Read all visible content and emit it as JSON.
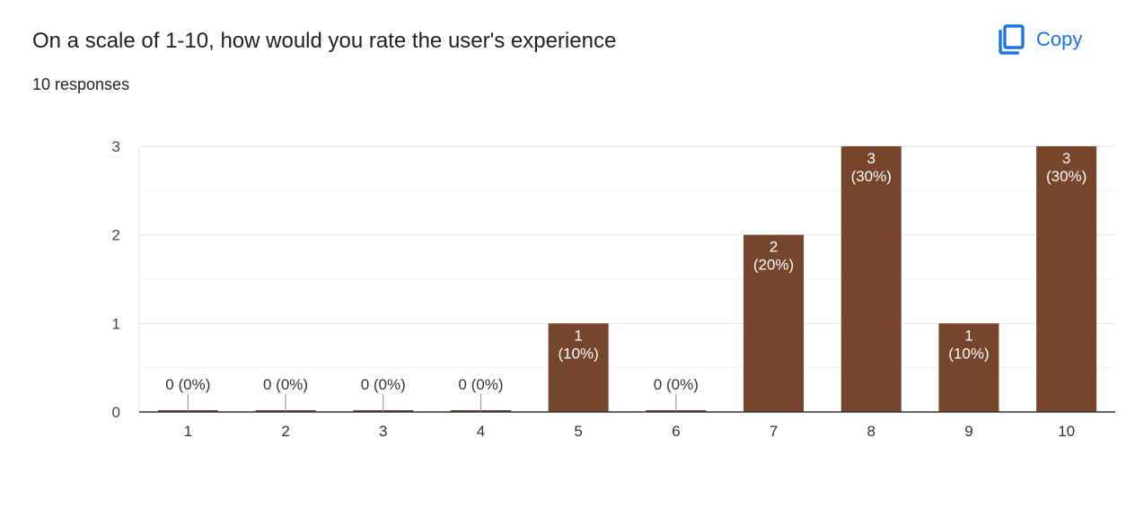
{
  "header": {
    "title": "On a scale of 1-10, how would you rate the user's experience",
    "responses": "10 responses",
    "copy_label": "Copy"
  },
  "icons": {
    "copy": "copy-icon"
  },
  "colors": {
    "bar": "#77452c",
    "accent": "#1a73e8",
    "grid": "#e6e6e6",
    "axis": "#333333"
  },
  "chart_data": {
    "type": "bar",
    "categories": [
      "1",
      "2",
      "3",
      "4",
      "5",
      "6",
      "7",
      "8",
      "9",
      "10"
    ],
    "values": [
      0,
      0,
      0,
      0,
      1,
      0,
      2,
      3,
      1,
      3
    ],
    "data_labels": [
      "0 (0%)",
      "0 (0%)",
      "0 (0%)",
      "0 (0%)",
      "1 (10%)",
      "0 (0%)",
      "2 (20%)",
      "3 (30%)",
      "1 (10%)",
      "3 (30%)"
    ],
    "y_ticks": [
      0,
      1,
      2,
      3
    ],
    "ylim": [
      0,
      3
    ],
    "title": "",
    "xlabel": "",
    "ylabel": "",
    "grid": true,
    "legend": "none"
  }
}
